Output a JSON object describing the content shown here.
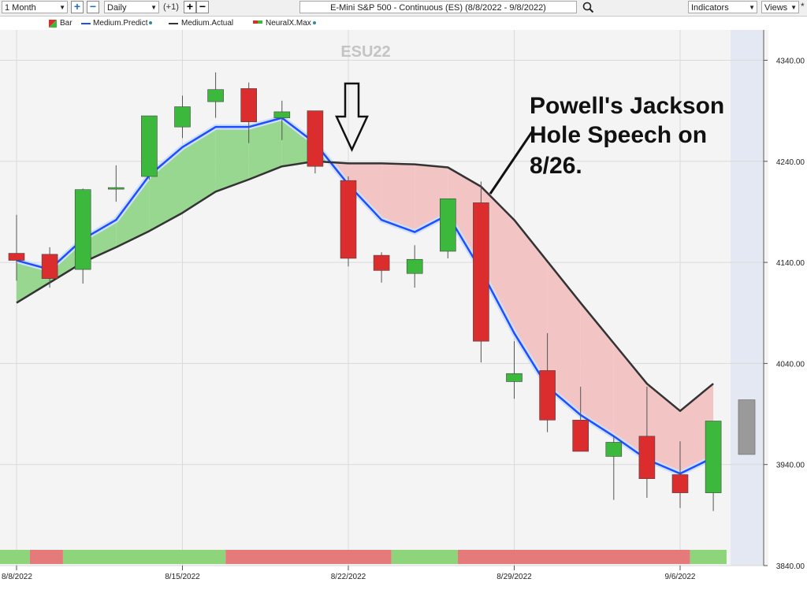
{
  "toolbar": {
    "period": "1 Month",
    "interval": "Daily",
    "offset": "(+1)",
    "symbol_title": "E-Mini S&P 500 - Continuous (ES) (8/8/2022 - 9/8/2022)",
    "indicators_label": "Indicators",
    "views_label": "Views",
    "pin_label": "*"
  },
  "legend": {
    "items": [
      "Bar",
      "Medium.Predict",
      "Medium.Actual",
      "NeuralX.Max"
    ]
  },
  "colors": {
    "up": "#3cb93c",
    "down": "#db2d2d",
    "predict": "#1e4fff",
    "actual": "#333333",
    "fill_green": "#98d78f",
    "fill_red": "#f2c4c4",
    "band_green": "#8ed47a",
    "band_red": "#e57a7a"
  },
  "chart_data": {
    "type": "candlestick",
    "watermark": "ESU22",
    "annotation": [
      "Powell's Jackson",
      "Hole Speech on",
      "8/26."
    ],
    "y_ticks": [
      "4340.00",
      "4240.00",
      "4140.00",
      "4040.00",
      "3940.00",
      "3840.00"
    ],
    "y_tick_values": [
      4340,
      4240,
      4140,
      4040,
      3940,
      3840
    ],
    "ylim": [
      3840,
      4370
    ],
    "x_ticks": [
      "8/8/2022",
      "8/15/2022",
      "8/22/2022",
      "8/29/2022",
      "9/6/2022"
    ],
    "x_tick_index": [
      0,
      5,
      10,
      15,
      20
    ],
    "xlim": [
      -0.5,
      22.5
    ],
    "candles": [
      {
        "date": "8/8/2022",
        "o": 4149,
        "h": 4187,
        "l": 4122,
        "c": 4142
      },
      {
        "date": "8/9/2022",
        "o": 4148,
        "h": 4155,
        "l": 4115,
        "c": 4124
      },
      {
        "date": "8/10/2022",
        "o": 4133,
        "h": 4213,
        "l": 4119,
        "c": 4212
      },
      {
        "date": "8/11/2022",
        "o": 4213,
        "h": 4236,
        "l": 4200,
        "c": 4214
      },
      {
        "date": "8/12/2022",
        "o": 4225,
        "h": 4285,
        "l": 4222,
        "c": 4285
      },
      {
        "date": "8/15/2022",
        "o": 4274,
        "h": 4305,
        "l": 4263,
        "c": 4294
      },
      {
        "date": "8/16/2022",
        "o": 4299,
        "h": 4328,
        "l": 4283,
        "c": 4311
      },
      {
        "date": "8/17/2022",
        "o": 4312,
        "h": 4318,
        "l": 4258,
        "c": 4279
      },
      {
        "date": "8/18/2022",
        "o": 4283,
        "h": 4300,
        "l": 4261,
        "c": 4289
      },
      {
        "date": "8/19/2022",
        "o": 4290,
        "h": 4290,
        "l": 4228,
        "c": 4235
      },
      {
        "date": "8/22/2022",
        "o": 4221,
        "h": 4225,
        "l": 4136,
        "c": 4144
      },
      {
        "date": "8/23/2022",
        "o": 4147,
        "h": 4150,
        "l": 4120,
        "c": 4132
      },
      {
        "date": "8/24/2022",
        "o": 4129,
        "h": 4157,
        "l": 4115,
        "c": 4143
      },
      {
        "date": "8/25/2022",
        "o": 4151,
        "h": 4203,
        "l": 4144,
        "c": 4203
      },
      {
        "date": "8/26/2022",
        "o": 4199,
        "h": 4220,
        "l": 4041,
        "c": 4062
      },
      {
        "date": "8/29/2022",
        "o": 4022,
        "h": 4062,
        "l": 4005,
        "c": 4030
      },
      {
        "date": "8/30/2022",
        "o": 4033,
        "h": 4070,
        "l": 3972,
        "c": 3984
      },
      {
        "date": "8/31/2022",
        "o": 3984,
        "h": 4017,
        "l": 3954,
        "c": 3953
      },
      {
        "date": "9/1/2022",
        "o": 3948,
        "h": 3968,
        "l": 3905,
        "c": 3962
      },
      {
        "date": "9/2/2022",
        "o": 3968,
        "h": 4017,
        "l": 3907,
        "c": 3926
      },
      {
        "date": "9/6/2022",
        "o": 3930,
        "h": 3963,
        "l": 3897,
        "c": 3912
      },
      {
        "date": "9/7/2022",
        "o": 3912,
        "h": 3983,
        "l": 3894,
        "c": 3983
      }
    ],
    "series": [
      {
        "name": "Medium.Predict",
        "values": [
          4142,
          4133,
          4163,
          4182,
          4226,
          4254,
          4274,
          4274,
          4283,
          4258,
          4217,
          4182,
          4170,
          4187,
          4132,
          4070,
          4017,
          3989,
          3968,
          3945,
          3931,
          3947
        ]
      },
      {
        "name": "Medium.Actual",
        "values": [
          4100,
          4120,
          4140,
          4155,
          4171,
          4189,
          4210,
          4222,
          4235,
          4240,
          4238,
          4238,
          4237,
          4234,
          4215,
          4182,
          4141,
          4100,
          4060,
          4020,
          3993,
          4020
        ]
      }
    ],
    "signal_band": [
      {
        "from": 0,
        "to": 0.9,
        "state": "up"
      },
      {
        "from": 0.9,
        "to": 1.9,
        "state": "down"
      },
      {
        "from": 1.9,
        "to": 6.8,
        "state": "up"
      },
      {
        "from": 6.8,
        "to": 11.8,
        "state": "down"
      },
      {
        "from": 11.8,
        "to": 13.8,
        "state": "up"
      },
      {
        "from": 13.8,
        "to": 20.8,
        "state": "down"
      },
      {
        "from": 20.8,
        "to": 21.9,
        "state": "up"
      }
    ],
    "forecast_bar": {
      "o": 4004,
      "c": 3950
    }
  }
}
